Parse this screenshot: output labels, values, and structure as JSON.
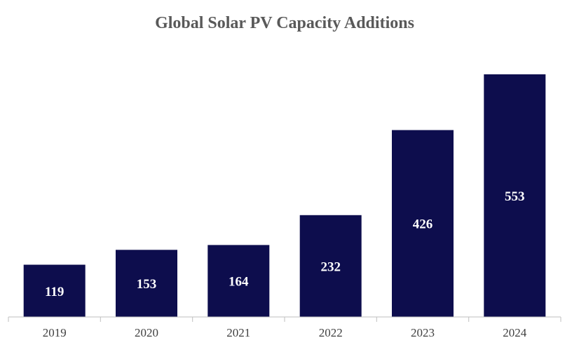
{
  "chart_data": {
    "type": "bar",
    "title": "Global Solar PV Capacity Additions",
    "categories": [
      "2019",
      "2020",
      "2021",
      "2022",
      "2023",
      "2024"
    ],
    "values": [
      119,
      153,
      164,
      232,
      426,
      553
    ],
    "xlabel": "",
    "ylabel": "",
    "ylim": [
      0,
      553
    ],
    "grid": false,
    "legend": "none",
    "bar_color": "#0d0d4d",
    "data_labels": true
  }
}
